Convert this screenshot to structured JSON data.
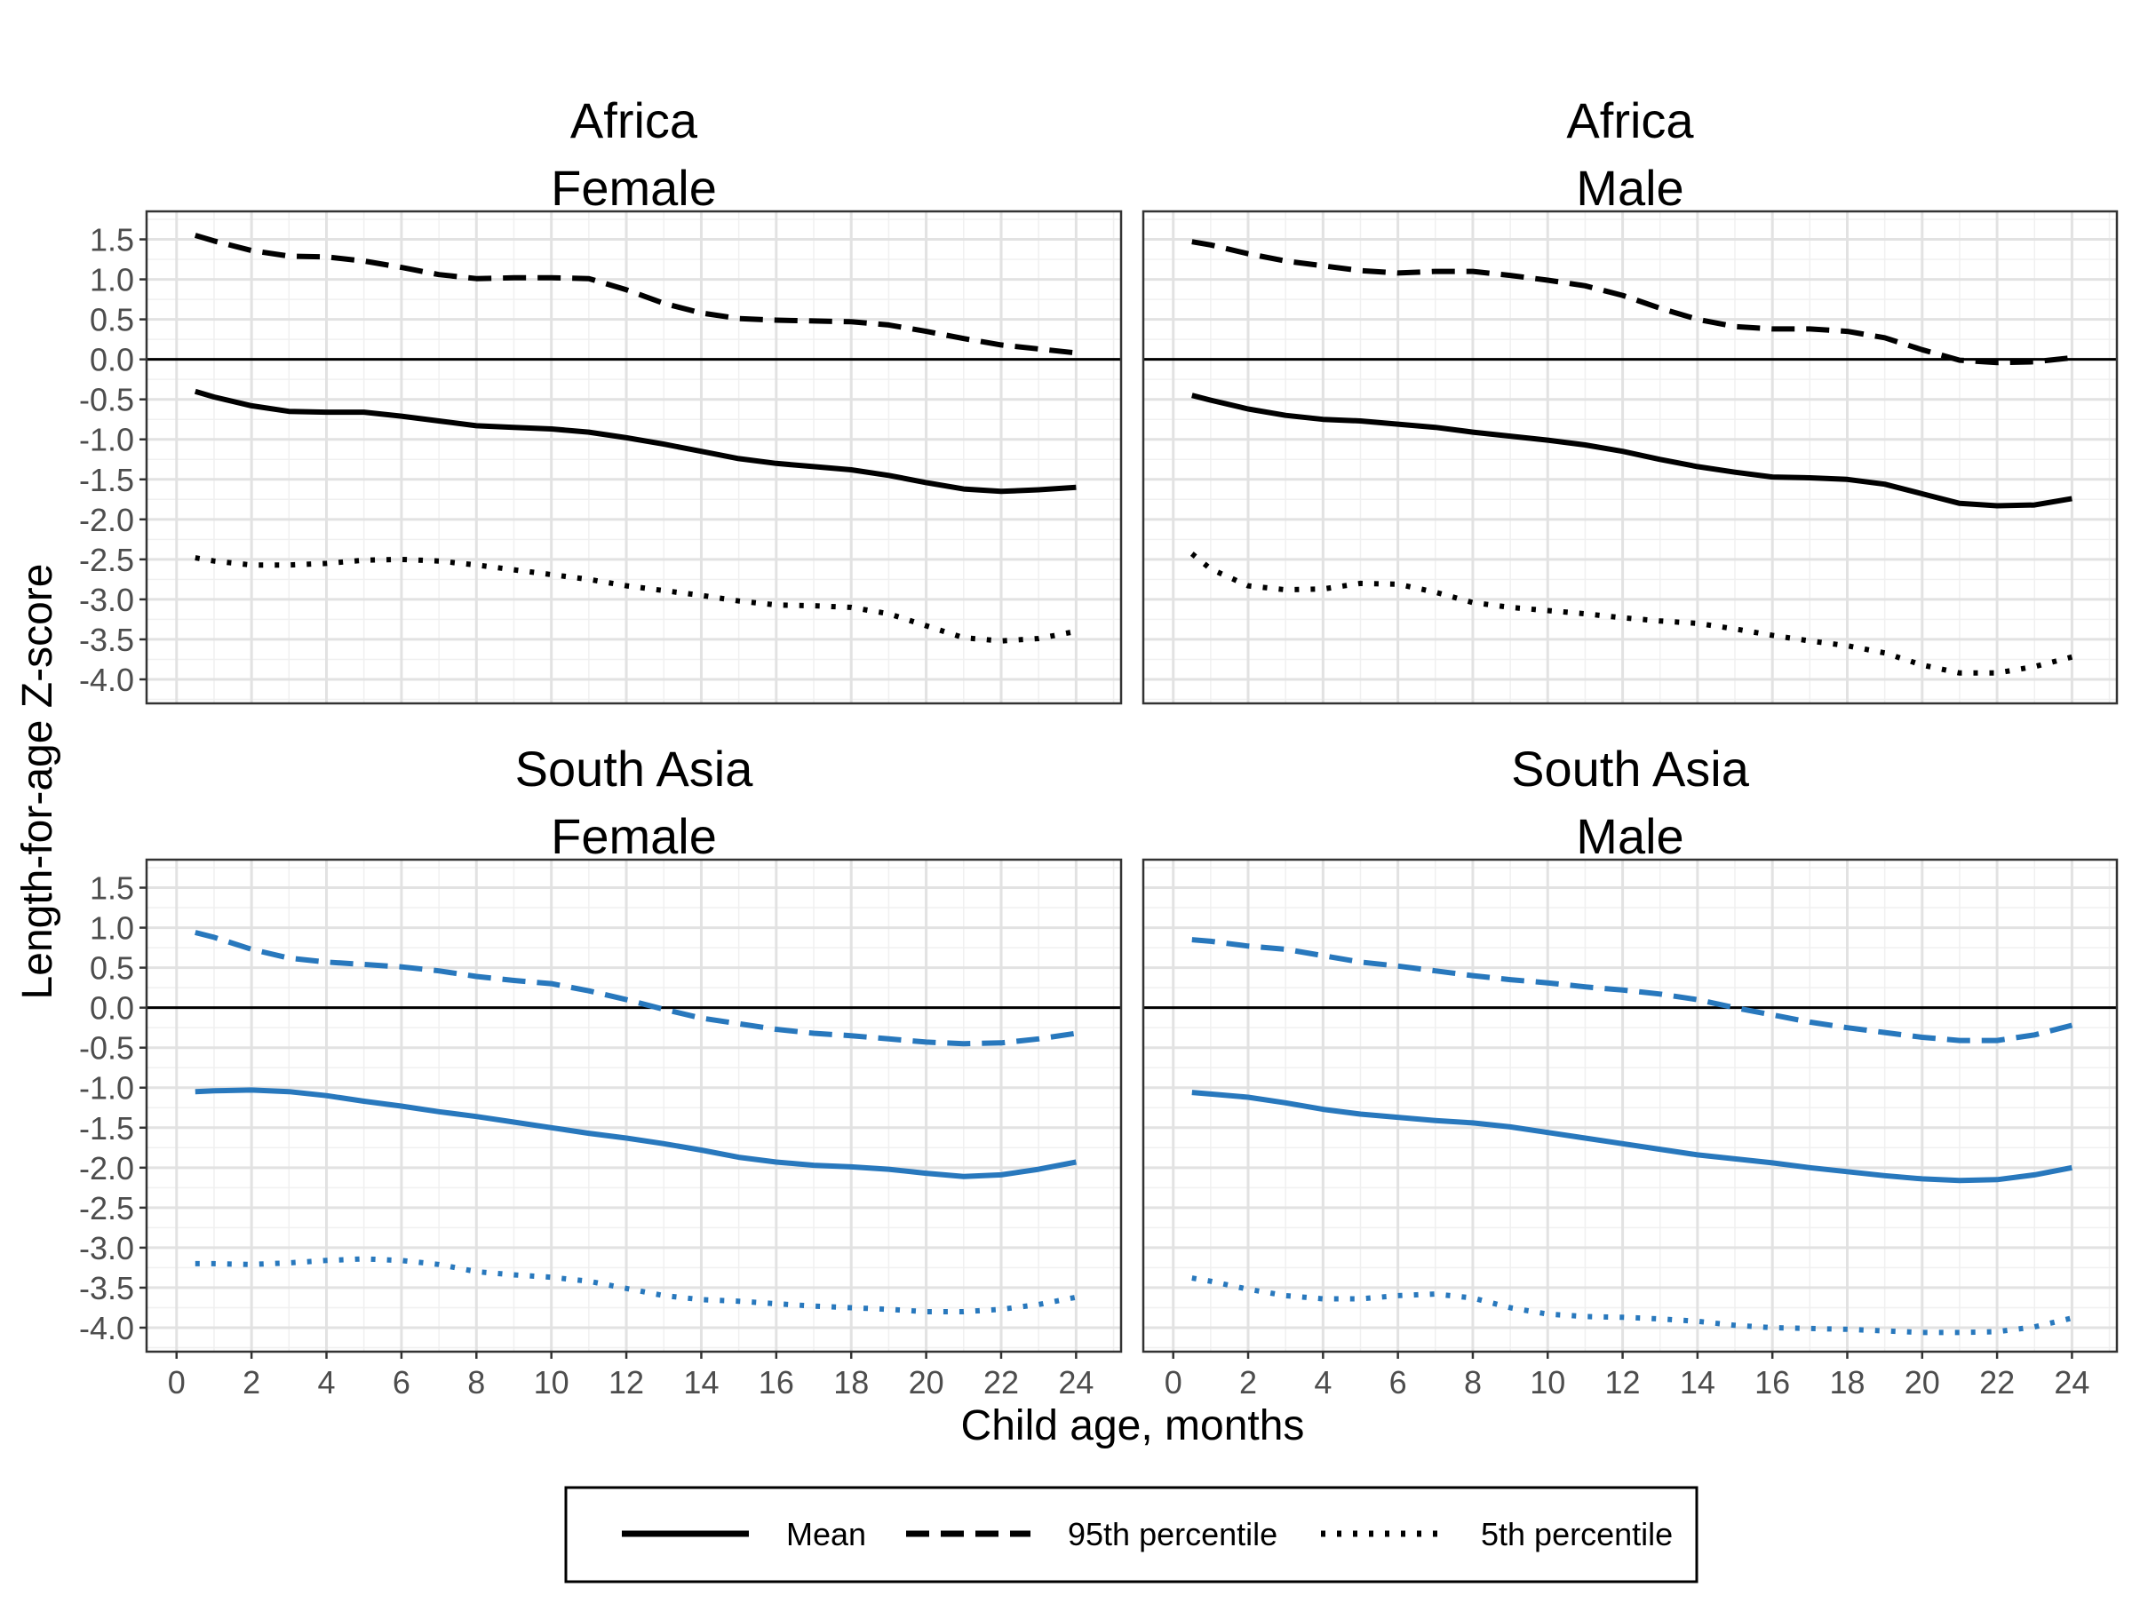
{
  "chart_data": {
    "type": "line",
    "xlabel": "Child age, months",
    "ylabel": "Length-for-age Z-score",
    "xlim": [
      -0.8,
      25.2
    ],
    "ylim": [
      -4.3,
      1.85
    ],
    "x_ticks": [
      0,
      2,
      4,
      6,
      8,
      10,
      12,
      14,
      16,
      18,
      20,
      22,
      24
    ],
    "x_tick_labels": [
      "0",
      "2",
      "4",
      "6",
      "8",
      "10",
      "12",
      "14",
      "16",
      "18",
      "20",
      "22",
      "24"
    ],
    "y_ticks": [
      1.5,
      1.0,
      0.5,
      0.0,
      -0.5,
      -1.0,
      -1.5,
      -2.0,
      -2.5,
      -3.0,
      -3.5,
      -4.0
    ],
    "y_tick_labels": [
      "1.5",
      "1.0",
      "0.5",
      "0.0",
      "-0.5",
      "-1.0",
      "-1.5",
      "-2.0",
      "-2.5",
      "-3.0",
      "-3.5",
      "-4.0"
    ],
    "grid": true,
    "reference_line_y": 0,
    "legend": {
      "position": "bottom",
      "entries": [
        {
          "label": "Mean",
          "linetype": "solid"
        },
        {
          "label": "95th percentile",
          "linetype": "dashed"
        },
        {
          "label": "5th percentile",
          "linetype": "dotted"
        }
      ]
    },
    "panels": [
      {
        "title_line1": "Africa",
        "title_line2": "Female",
        "color": "#000000",
        "x": [
          0.5,
          1,
          2,
          3,
          4,
          5,
          6,
          7,
          8,
          9,
          10,
          11,
          12,
          13,
          14,
          15,
          16,
          17,
          18,
          19,
          20,
          21,
          22,
          23,
          24
        ],
        "series": [
          {
            "name": "Mean",
            "values": [
              -0.4,
              -0.47,
              -0.58,
              -0.65,
              -0.66,
              -0.66,
              -0.71,
              -0.77,
              -0.83,
              -0.85,
              -0.87,
              -0.91,
              -0.98,
              -1.06,
              -1.15,
              -1.24,
              -1.3,
              -1.34,
              -1.38,
              -1.45,
              -1.54,
              -1.62,
              -1.65,
              -1.63,
              -1.6
            ]
          },
          {
            "name": "95th percentile",
            "values": [
              1.55,
              1.48,
              1.36,
              1.29,
              1.28,
              1.23,
              1.15,
              1.06,
              1.01,
              1.02,
              1.02,
              1.01,
              0.87,
              0.7,
              0.58,
              0.51,
              0.49,
              0.48,
              0.47,
              0.43,
              0.35,
              0.26,
              0.18,
              0.13,
              0.08
            ]
          },
          {
            "name": "5th percentile",
            "values": [
              -2.48,
              -2.52,
              -2.57,
              -2.57,
              -2.55,
              -2.51,
              -2.5,
              -2.52,
              -2.57,
              -2.63,
              -2.69,
              -2.75,
              -2.83,
              -2.89,
              -2.95,
              -3.02,
              -3.07,
              -3.08,
              -3.1,
              -3.18,
              -3.33,
              -3.48,
              -3.52,
              -3.49,
              -3.4
            ]
          }
        ]
      },
      {
        "title_line1": "Africa",
        "title_line2": "Male",
        "color": "#000000",
        "x": [
          0.5,
          1,
          2,
          3,
          4,
          5,
          6,
          7,
          8,
          9,
          10,
          11,
          12,
          13,
          14,
          15,
          16,
          17,
          18,
          19,
          20,
          21,
          22,
          23,
          24
        ],
        "series": [
          {
            "name": "Mean",
            "values": [
              -0.45,
              -0.51,
              -0.62,
              -0.7,
              -0.75,
              -0.77,
              -0.81,
              -0.85,
              -0.91,
              -0.96,
              -1.01,
              -1.07,
              -1.15,
              -1.25,
              -1.34,
              -1.41,
              -1.47,
              -1.48,
              -1.5,
              -1.56,
              -1.68,
              -1.8,
              -1.83,
              -1.82,
              -1.74
            ]
          },
          {
            "name": "95th percentile",
            "values": [
              1.47,
              1.43,
              1.32,
              1.23,
              1.17,
              1.11,
              1.08,
              1.1,
              1.1,
              1.05,
              0.99,
              0.92,
              0.8,
              0.64,
              0.5,
              0.41,
              0.38,
              0.38,
              0.35,
              0.27,
              0.12,
              -0.01,
              -0.04,
              -0.03,
              0.02
            ]
          },
          {
            "name": "5th percentile",
            "values": [
              -2.43,
              -2.62,
              -2.83,
              -2.88,
              -2.87,
              -2.8,
              -2.81,
              -2.91,
              -3.04,
              -3.1,
              -3.14,
              -3.18,
              -3.23,
              -3.27,
              -3.3,
              -3.37,
              -3.45,
              -3.52,
              -3.58,
              -3.67,
              -3.82,
              -3.92,
              -3.92,
              -3.84,
              -3.72
            ]
          }
        ]
      },
      {
        "title_line1": "South Asia",
        "title_line2": "Female",
        "color": "#2878BD",
        "x": [
          0.5,
          1,
          2,
          3,
          4,
          5,
          6,
          7,
          8,
          9,
          10,
          11,
          12,
          13,
          14,
          15,
          16,
          17,
          18,
          19,
          20,
          21,
          22,
          23,
          24
        ],
        "series": [
          {
            "name": "Mean",
            "values": [
              -1.05,
              -1.04,
              -1.03,
              -1.05,
              -1.1,
              -1.17,
              -1.23,
              -1.3,
              -1.36,
              -1.43,
              -1.5,
              -1.57,
              -1.63,
              -1.7,
              -1.78,
              -1.87,
              -1.93,
              -1.97,
              -1.99,
              -2.02,
              -2.07,
              -2.11,
              -2.09,
              -2.02,
              -1.93
            ]
          },
          {
            "name": "95th percentile",
            "values": [
              0.94,
              0.88,
              0.73,
              0.62,
              0.57,
              0.54,
              0.51,
              0.46,
              0.39,
              0.34,
              0.3,
              0.21,
              0.1,
              -0.02,
              -0.13,
              -0.2,
              -0.27,
              -0.32,
              -0.35,
              -0.39,
              -0.43,
              -0.45,
              -0.44,
              -0.39,
              -0.32
            ]
          },
          {
            "name": "5th percentile",
            "values": [
              -3.2,
              -3.2,
              -3.21,
              -3.19,
              -3.16,
              -3.14,
              -3.16,
              -3.21,
              -3.3,
              -3.34,
              -3.37,
              -3.42,
              -3.51,
              -3.6,
              -3.65,
              -3.67,
              -3.7,
              -3.73,
              -3.75,
              -3.77,
              -3.8,
              -3.8,
              -3.77,
              -3.71,
              -3.62
            ]
          }
        ]
      },
      {
        "title_line1": "South Asia",
        "title_line2": "Male",
        "color": "#2878BD",
        "x": [
          0.5,
          1,
          2,
          3,
          4,
          5,
          6,
          7,
          8,
          9,
          10,
          11,
          12,
          13,
          14,
          15,
          16,
          17,
          18,
          19,
          20,
          21,
          22,
          23,
          24
        ],
        "series": [
          {
            "name": "Mean",
            "values": [
              -1.06,
              -1.08,
              -1.12,
              -1.19,
              -1.27,
              -1.33,
              -1.37,
              -1.41,
              -1.44,
              -1.49,
              -1.56,
              -1.63,
              -1.7,
              -1.77,
              -1.84,
              -1.89,
              -1.94,
              -2.0,
              -2.05,
              -2.1,
              -2.14,
              -2.16,
              -2.15,
              -2.09,
              -2.0
            ]
          },
          {
            "name": "95th percentile",
            "values": [
              0.85,
              0.83,
              0.77,
              0.73,
              0.65,
              0.57,
              0.52,
              0.46,
              0.4,
              0.35,
              0.31,
              0.26,
              0.22,
              0.17,
              0.1,
              0.0,
              -0.09,
              -0.18,
              -0.25,
              -0.31,
              -0.37,
              -0.41,
              -0.41,
              -0.34,
              -0.22
            ]
          },
          {
            "name": "5th percentile",
            "values": [
              -3.38,
              -3.42,
              -3.52,
              -3.6,
              -3.64,
              -3.64,
              -3.6,
              -3.58,
              -3.63,
              -3.75,
              -3.83,
              -3.86,
              -3.87,
              -3.89,
              -3.92,
              -3.97,
              -4.0,
              -4.01,
              -4.02,
              -4.04,
              -4.06,
              -4.06,
              -4.05,
              -3.99,
              -3.88
            ]
          }
        ]
      }
    ]
  }
}
